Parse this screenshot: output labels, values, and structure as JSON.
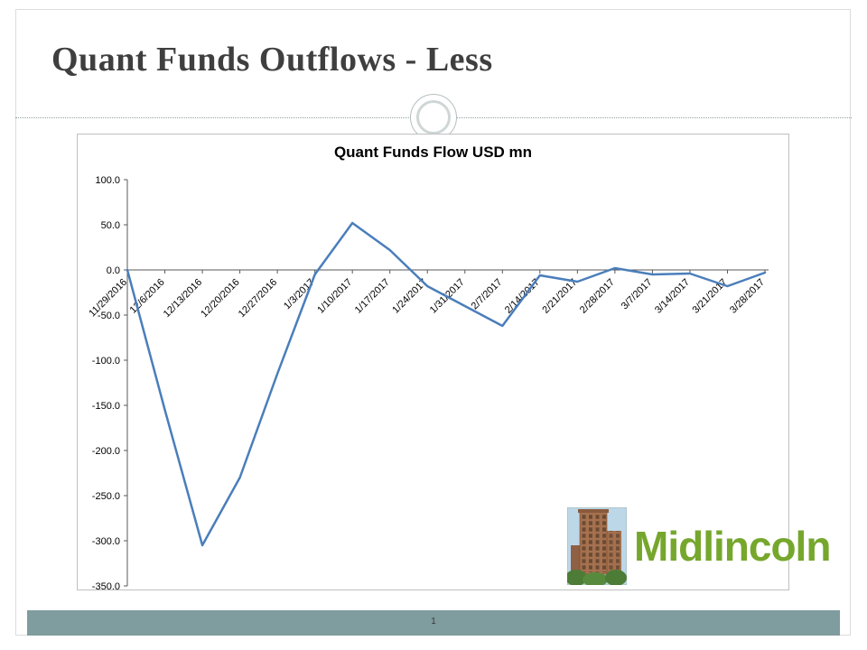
{
  "slide": {
    "title": "Quant Funds Outflows - Less",
    "page_number": "1"
  },
  "footer": {
    "bar_color": "#7f9c9e"
  },
  "logo": {
    "text": "Midlincoln",
    "text_color": "#76a72d",
    "image": "brick-building-with-trees"
  },
  "chart_data": {
    "type": "line",
    "title": "Quant Funds Flow USD mn",
    "categories": [
      "11/29/2016",
      "12/6/2016",
      "12/13/2016",
      "12/20/2016",
      "12/27/2016",
      "1/3/2017",
      "1/10/2017",
      "1/17/2017",
      "1/24/2017",
      "1/31/2017",
      "2/7/2017",
      "2/14/2017",
      "2/21/2017",
      "2/28/2017",
      "3/7/2017",
      "3/14/2017",
      "3/21/2017",
      "3/28/2017"
    ],
    "values": [
      0,
      -155,
      -305,
      -230,
      -115,
      -5,
      52,
      22,
      -18,
      -40,
      -62,
      -6,
      -13,
      2,
      -5,
      -4,
      -18,
      -3
    ],
    "ylim": [
      -350,
      100
    ],
    "ytick_labels": [
      "100.0",
      "50.0",
      "0.0",
      "-50.0",
      "-100.0",
      "-150.0",
      "-200.0",
      "-250.0",
      "-300.0",
      "-350.0"
    ],
    "xlabel": "",
    "ylabel": "",
    "grid": false,
    "legend": false,
    "line_color": "#4a7ebb",
    "axis_color": "#595959",
    "x_label_rotation": -45
  }
}
